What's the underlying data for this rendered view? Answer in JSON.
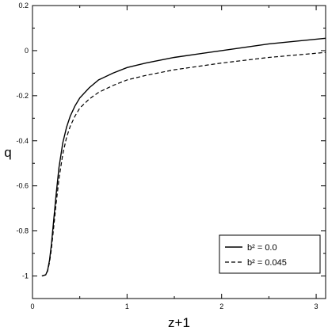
{
  "chart_data": {
    "type": "line",
    "xlabel": "z+1",
    "ylabel": "q",
    "xlim": [
      0,
      3.1
    ],
    "ylim": [
      -1.1,
      0.2
    ],
    "grid": false,
    "legend_position": "bottom-right",
    "x_ticks": [
      {
        "value": 0,
        "label": "0"
      },
      {
        "value": 1,
        "label": "1"
      },
      {
        "value": 2,
        "label": "2"
      },
      {
        "value": 3,
        "label": "3"
      }
    ],
    "y_ticks": [
      {
        "value": 0.2,
        "label": "0.2"
      },
      {
        "value": 0,
        "label": "0"
      },
      {
        "value": -0.2,
        "label": "-0.2"
      },
      {
        "value": -0.4,
        "label": "-0.4"
      },
      {
        "value": -0.6,
        "label": "-0.6"
      },
      {
        "value": -0.8,
        "label": "-0.8"
      },
      {
        "value": -1,
        "label": "-1"
      }
    ],
    "series": [
      {
        "name": "b² = 0.0",
        "style": "solid",
        "color": "#000000",
        "x": [
          0.1,
          0.14,
          0.16,
          0.18,
          0.2,
          0.22,
          0.25,
          0.28,
          0.32,
          0.36,
          0.4,
          0.45,
          0.5,
          0.6,
          0.7,
          0.85,
          1.0,
          1.2,
          1.5,
          2.0,
          2.5,
          3.1
        ],
        "y": [
          -1.0,
          -0.995,
          -0.975,
          -0.93,
          -0.86,
          -0.77,
          -0.64,
          -0.52,
          -0.41,
          -0.34,
          -0.29,
          -0.245,
          -0.21,
          -0.165,
          -0.13,
          -0.1,
          -0.075,
          -0.055,
          -0.03,
          0.0,
          0.03,
          0.055
        ]
      },
      {
        "name": "b² = 0.045",
        "style": "dashed",
        "color": "#000000",
        "x": [
          0.1,
          0.14,
          0.16,
          0.18,
          0.2,
          0.22,
          0.25,
          0.28,
          0.32,
          0.36,
          0.4,
          0.45,
          0.5,
          0.6,
          0.7,
          0.85,
          1.0,
          1.2,
          1.5,
          2.0,
          2.5,
          3.1
        ],
        "y": [
          -1.0,
          -0.995,
          -0.978,
          -0.94,
          -0.88,
          -0.8,
          -0.68,
          -0.57,
          -0.46,
          -0.385,
          -0.335,
          -0.29,
          -0.255,
          -0.215,
          -0.185,
          -0.155,
          -0.13,
          -0.11,
          -0.085,
          -0.055,
          -0.03,
          -0.008
        ]
      }
    ]
  }
}
